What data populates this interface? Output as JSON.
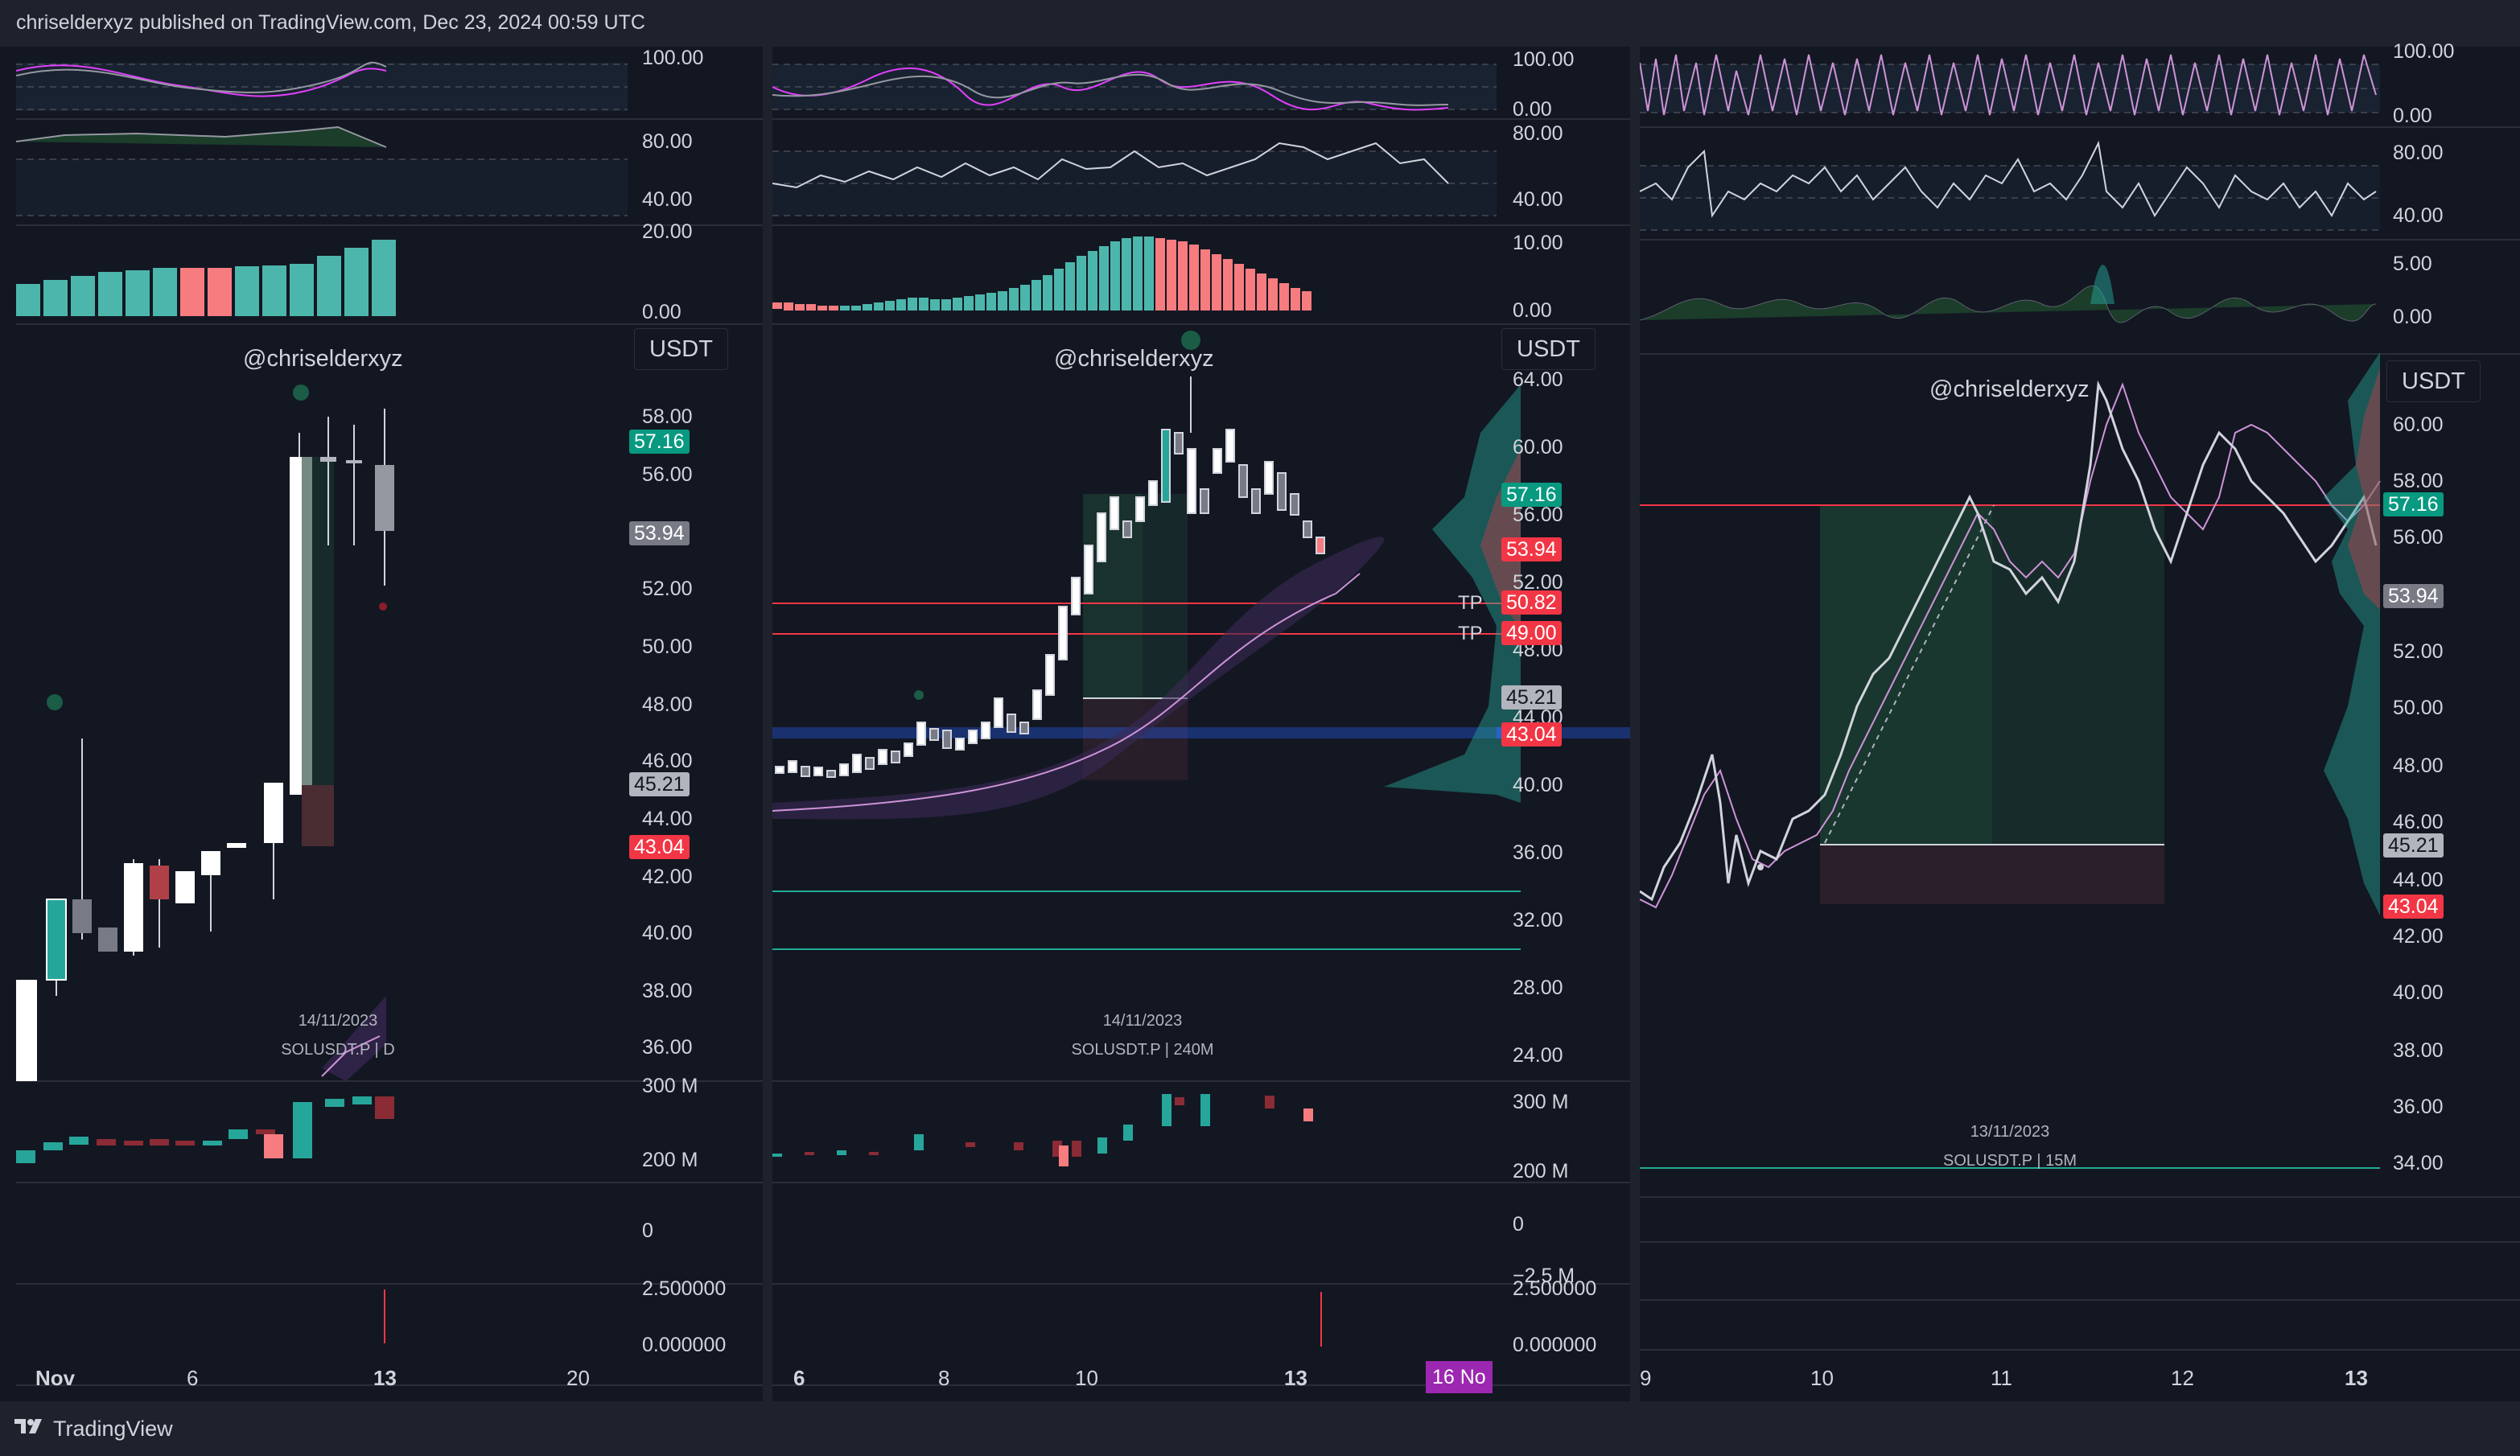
{
  "header": {
    "publish_text": "chriselderxyz published on TradingView.com, Dec 23, 2024 00:59 UTC"
  },
  "footer": {
    "brand": "TradingView"
  },
  "colors": {
    "bg": "#131722",
    "up": "#26a69a",
    "down": "#ef5350",
    "accent_pink": "#f23645",
    "purple": "#9c27b0"
  },
  "panels": [
    {
      "watermark": "@chriselderxyz",
      "currency": "USDT",
      "date": "14/11/2023",
      "symbol": "SOLUSDT.P | D",
      "osc1_ticks": [
        "100.00"
      ],
      "osc2_ticks": [
        "80.00",
        "40.00"
      ],
      "hist_ticks": [
        "20.00",
        "0.00"
      ],
      "price_ticks": [
        "58.00",
        "56.00",
        "52.00",
        "50.00",
        "48.00",
        "46.00",
        "44.00",
        "42.00",
        "40.00",
        "38.00",
        "36.00"
      ],
      "tags": {
        "last": "57.16",
        "a": "53.94",
        "b": "45.21",
        "c": "43.04"
      },
      "volume_ticks": [
        "300 M",
        "200 M"
      ],
      "low_ticks": [
        "0",
        "2.500000",
        "0.000000"
      ],
      "time_labels": [
        "Nov",
        "6",
        "13",
        "20"
      ]
    },
    {
      "watermark": "@chriselderxyz",
      "currency": "USDT",
      "date": "14/11/2023",
      "symbol": "SOLUSDT.P | 240M",
      "osc1_ticks": [
        "100.00",
        "0.00"
      ],
      "osc2_ticks": [
        "80.00",
        "40.00"
      ],
      "hist_ticks": [
        "10.00",
        "0.00"
      ],
      "price_ticks": [
        "64.00",
        "60.00",
        "56.00",
        "52.00",
        "48.00",
        "44.00",
        "40.00",
        "36.00",
        "32.00",
        "28.00",
        "24.00"
      ],
      "tags": {
        "last": "57.16",
        "a": "53.94",
        "tp1": "50.82",
        "tp2": "49.00",
        "b": "45.21",
        "c": "43.04"
      },
      "tp_label": "TP",
      "volume_ticks": [
        "300 M",
        "200 M"
      ],
      "low_ticks": [
        "0",
        "−2.5 M",
        "2.500000",
        "0.000000"
      ],
      "time_labels": [
        "6",
        "8",
        "10",
        "13"
      ],
      "date_badge": "16 No"
    },
    {
      "watermark": "@chriselderxyz",
      "currency": "USDT",
      "date": "13/11/2023",
      "symbol": "SOLUSDT.P | 15M",
      "osc1_ticks": [
        "100.00",
        "0.00"
      ],
      "osc2_ticks": [
        "80.00",
        "40.00"
      ],
      "hist_ticks": [
        "5.00",
        "0.00"
      ],
      "price_ticks": [
        "60.00",
        "58.00",
        "56.00",
        "52.00",
        "50.00",
        "48.00",
        "46.00",
        "44.00",
        "42.00",
        "40.00",
        "38.00",
        "36.00",
        "34.00"
      ],
      "tags": {
        "last": "57.16",
        "a": "53.94",
        "b": "45.21",
        "c": "43.04"
      },
      "time_labels": [
        "9",
        "10",
        "11",
        "12",
        "13"
      ]
    }
  ]
}
